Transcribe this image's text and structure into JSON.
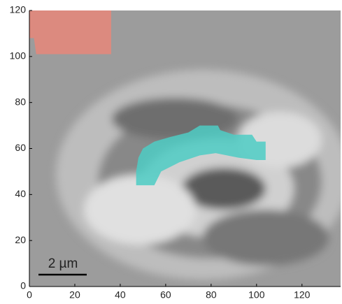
{
  "chart_data": {
    "type": "image",
    "xlim": [
      0,
      137
    ],
    "ylim": [
      0,
      120
    ],
    "xticks": [
      0,
      20,
      40,
      60,
      80,
      100,
      120
    ],
    "yticks": [
      0,
      20,
      40,
      60,
      80,
      100,
      120
    ],
    "scale_bar_label": "2 µm",
    "regions": [
      {
        "color": "#e8877a",
        "x": [
          0,
          36,
          36,
          3,
          2,
          0
        ],
        "y": [
          120,
          120,
          101,
          101,
          108,
          108
        ]
      },
      {
        "color": "#4ecdc4",
        "x": [
          47,
          55,
          58,
          66,
          75,
          82,
          92,
          100,
          104,
          104,
          100,
          98,
          90,
          84,
          83,
          75,
          70,
          62,
          55,
          50,
          48,
          47
        ],
        "y": [
          44,
          44,
          50,
          54,
          57,
          58,
          56,
          55,
          55,
          63,
          63,
          66,
          66,
          68,
          70,
          70,
          67,
          65,
          63,
          60,
          56,
          50
        ]
      }
    ]
  }
}
